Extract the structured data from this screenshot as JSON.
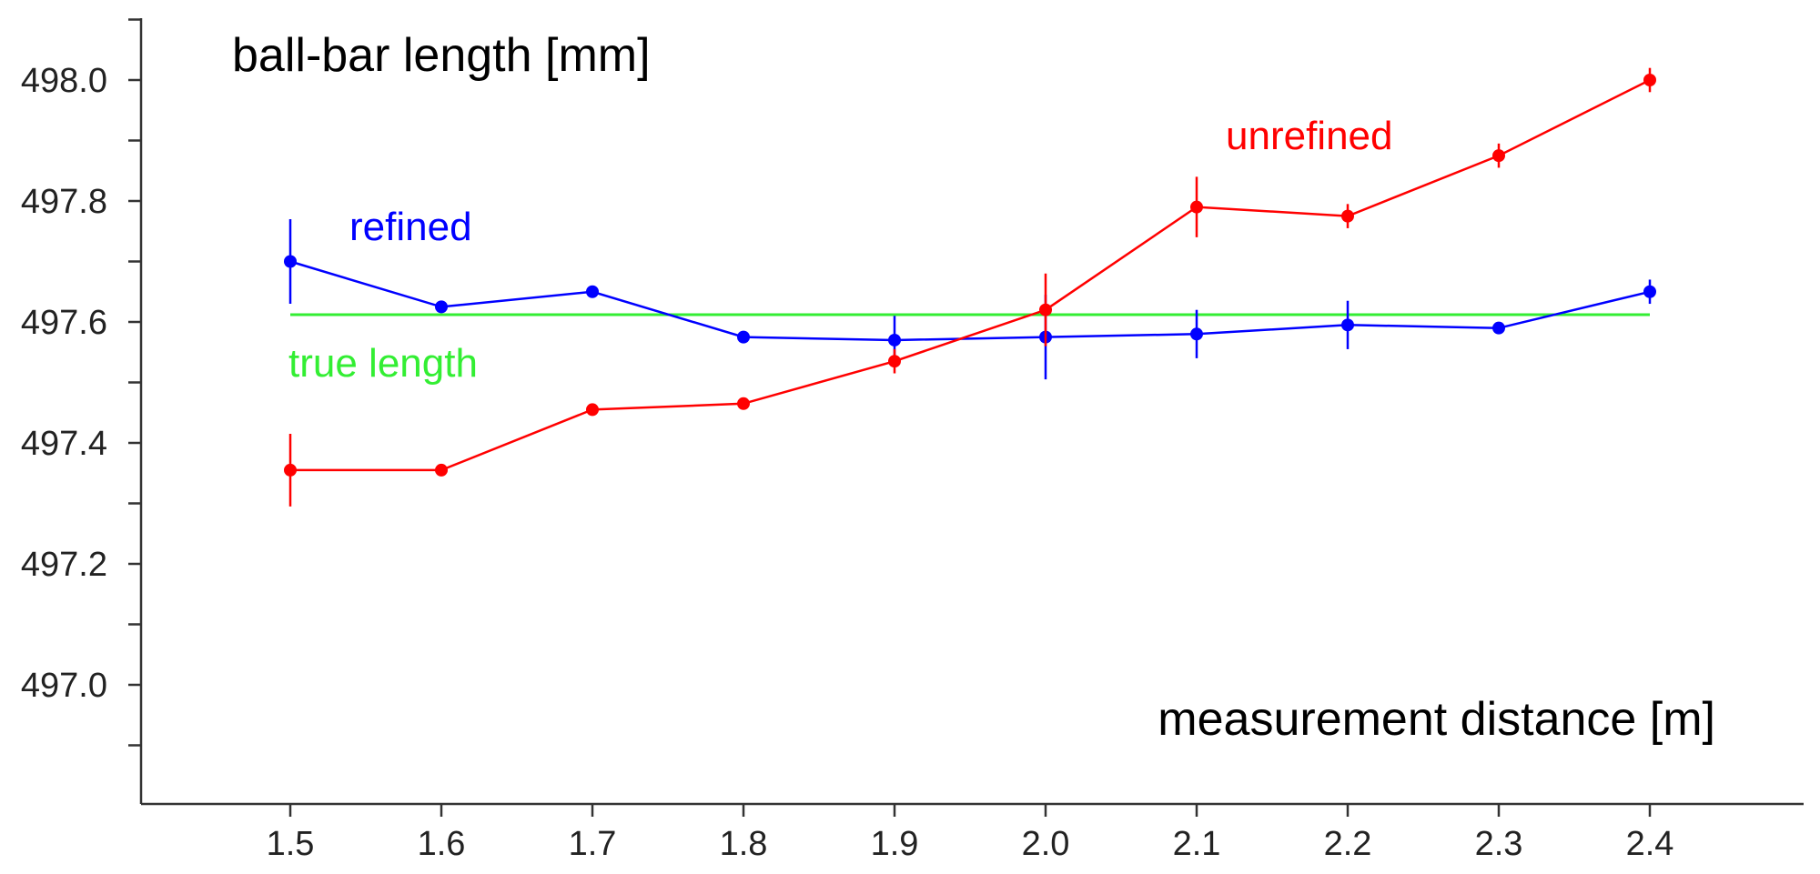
{
  "chart_data": {
    "type": "line",
    "title": "ball-bar length [mm]",
    "xlabel": "measurement distance [m]",
    "ylabel": "ball-bar length [mm]",
    "x": [
      1.5,
      1.6,
      1.7,
      1.8,
      1.9,
      2.0,
      2.1,
      2.2,
      2.3,
      2.4
    ],
    "xlim": [
      1.4,
      2.5
    ],
    "ylim": [
      496.8,
      498.1
    ],
    "x_ticks": [
      "1.5",
      "1.6",
      "1.7",
      "1.8",
      "1.9",
      "2.0",
      "2.1",
      "2.2",
      "2.3",
      "2.4"
    ],
    "y_ticks": [
      "497.0",
      "497.2",
      "497.4",
      "497.6",
      "497.8",
      "498.0"
    ],
    "grid": false,
    "series": [
      {
        "name": "refined",
        "color": "#0000ff",
        "values": [
          497.7,
          497.625,
          497.65,
          497.575,
          497.57,
          497.575,
          497.58,
          497.595,
          497.59,
          497.65
        ],
        "errors": [
          0.07,
          0.01,
          0.01,
          0.01,
          0.04,
          0.07,
          0.04,
          0.04,
          0.01,
          0.02
        ]
      },
      {
        "name": "unrefined",
        "color": "#ff0000",
        "values": [
          497.355,
          497.355,
          497.455,
          497.465,
          497.535,
          497.62,
          497.79,
          497.775,
          497.875,
          498.0
        ],
        "errors": [
          0.06,
          0.01,
          0.01,
          0.01,
          0.02,
          0.06,
          0.05,
          0.02,
          0.02,
          0.02
        ]
      },
      {
        "name": "true length",
        "color": "#33ee33",
        "values": [
          497.612,
          497.612,
          497.612,
          497.612,
          497.612,
          497.612,
          497.612,
          497.612,
          497.612,
          497.612
        ]
      }
    ]
  }
}
